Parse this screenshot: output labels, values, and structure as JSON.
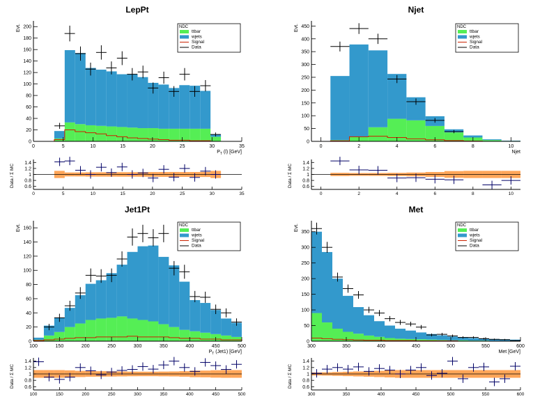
{
  "colors": {
    "ttbar": "#55ee55",
    "wjets": "#3399cc",
    "signal": "#cc2200",
    "data": "#000000",
    "ratio_band": "#ff7700",
    "ratio_points": "#000066"
  },
  "legend": {
    "header": "NDC",
    "entries": [
      "ttbar",
      "wjets",
      "Signal",
      "Data"
    ]
  },
  "ratio_ylabel": "Data / Σ MC",
  "ratio_ticks": [
    "1.4",
    "1.2",
    "1",
    "0.8",
    "0.6"
  ],
  "chart_data": [
    {
      "id": "leppt",
      "type": "bar",
      "stacked": true,
      "title": "LepPt",
      "ylabel": "Evt.",
      "xlabel_main": "P",
      "xlabel_sub": "T",
      "xlabel_rest": "(l) [GeV]",
      "xlim": [
        0,
        35
      ],
      "ylim": [
        0,
        210
      ],
      "xticks": [
        0,
        5,
        10,
        15,
        20,
        25,
        30,
        35
      ],
      "yticks": [
        0,
        20,
        40,
        60,
        80,
        100,
        120,
        140,
        160,
        180,
        200
      ],
      "bins": [
        [
          3.5,
          5.25
        ],
        [
          5.25,
          7
        ],
        [
          7,
          8.75
        ],
        [
          8.75,
          10.5
        ],
        [
          10.5,
          12.25
        ],
        [
          12.25,
          14
        ],
        [
          14,
          15.75
        ],
        [
          15.75,
          17.5
        ],
        [
          17.5,
          19.25
        ],
        [
          19.25,
          21
        ],
        [
          21,
          22.75
        ],
        [
          22.75,
          24.5
        ],
        [
          24.5,
          26.25
        ],
        [
          26.25,
          28
        ],
        [
          28,
          29.75
        ],
        [
          29.75,
          31.5
        ]
      ],
      "ttbar": [
        5,
        33,
        30,
        28,
        27,
        26,
        25,
        24,
        23,
        23,
        22,
        22,
        22,
        22,
        22,
        8
      ],
      "wjets": [
        13,
        126,
        124,
        100,
        98,
        96,
        92,
        93,
        89,
        79,
        77,
        71,
        76,
        75,
        66,
        4
      ],
      "signal": [
        3,
        20,
        17,
        15,
        13,
        10,
        8,
        6,
        5,
        4,
        3,
        2,
        2,
        1,
        1,
        0
      ],
      "data_x": [
        4.4,
        6.1,
        7.9,
        9.6,
        11.4,
        13.1,
        14.9,
        16.6,
        18.4,
        20.1,
        21.9,
        23.6,
        25.4,
        27.1,
        28.9,
        30.6
      ],
      "data_y": [
        27,
        188,
        153,
        126,
        155,
        128,
        145,
        117,
        121,
        93,
        111,
        87,
        117,
        87,
        97,
        12
      ],
      "ratio_y": [
        1.42,
        1.45,
        1.14,
        1.0,
        1.24,
        1.06,
        1.25,
        1.0,
        1.05,
        0.88,
        1.17,
        0.91,
        1.2,
        0.9,
        1.11,
        1.0
      ]
    },
    {
      "id": "njet",
      "type": "bar",
      "stacked": true,
      "title": "Njet",
      "ylabel": "Evt.",
      "xlabel_main": "Njet",
      "xlabel_sub": "",
      "xlabel_rest": "",
      "xlim": [
        -0.5,
        10.5
      ],
      "ylim": [
        0,
        470
      ],
      "xticks": [
        0,
        2,
        4,
        6,
        8,
        10
      ],
      "yticks": [
        0,
        50,
        100,
        150,
        200,
        250,
        300,
        350,
        400,
        450
      ],
      "bins": [
        [
          0.5,
          1.5
        ],
        [
          1.5,
          2.5
        ],
        [
          2.5,
          3.5
        ],
        [
          3.5,
          4.5
        ],
        [
          4.5,
          5.5
        ],
        [
          5.5,
          6.5
        ],
        [
          6.5,
          7.5
        ],
        [
          7.5,
          8.5
        ],
        [
          8.5,
          9.5
        ],
        [
          9.5,
          10.5
        ]
      ],
      "ttbar": [
        5,
        18,
        55,
        88,
        82,
        60,
        35,
        15,
        5,
        2
      ],
      "wjets": [
        250,
        360,
        300,
        175,
        90,
        38,
        12,
        8,
        3,
        1
      ],
      "signal": [
        2,
        18,
        20,
        15,
        10,
        6,
        3,
        1,
        0,
        0
      ],
      "data_x": [
        1,
        2,
        3,
        4,
        5,
        6,
        7,
        8,
        9,
        10
      ],
      "data_y": [
        370,
        440,
        400,
        243,
        155,
        82,
        38,
        0,
        0,
        0
      ],
      "ratio_y": [
        1.45,
        1.15,
        1.14,
        0.88,
        0.89,
        0.84,
        0.82,
        0,
        0.65,
        0.8
      ]
    },
    {
      "id": "jet1pt",
      "type": "bar",
      "stacked": true,
      "title": "Jet1Pt",
      "ylabel": "Evt.",
      "xlabel_main": "P",
      "xlabel_sub": "T",
      "xlabel_rest": "(Jet1) [GeV]",
      "xlim": [
        100,
        500
      ],
      "ylim": [
        0,
        170
      ],
      "xticks": [
        100,
        150,
        200,
        250,
        300,
        350,
        400,
        450,
        500
      ],
      "yticks": [
        0,
        20,
        40,
        60,
        80,
        100,
        120,
        140,
        160
      ],
      "bins": [
        [
          100,
          120
        ],
        [
          120,
          140
        ],
        [
          140,
          160
        ],
        [
          160,
          180
        ],
        [
          180,
          200
        ],
        [
          200,
          220
        ],
        [
          220,
          240
        ],
        [
          240,
          260
        ],
        [
          260,
          280
        ],
        [
          280,
          300
        ],
        [
          300,
          320
        ],
        [
          320,
          340
        ],
        [
          340,
          360
        ],
        [
          360,
          380
        ],
        [
          380,
          400
        ],
        [
          400,
          420
        ],
        [
          420,
          440
        ],
        [
          440,
          460
        ],
        [
          460,
          480
        ],
        [
          480,
          500
        ]
      ],
      "ttbar": [
        2,
        8,
        13,
        20,
        25,
        30,
        32,
        33,
        35,
        32,
        30,
        28,
        24,
        20,
        16,
        14,
        12,
        10,
        8,
        6
      ],
      "wjets": [
        3,
        14,
        20,
        27,
        40,
        51,
        54,
        63,
        73,
        94,
        104,
        107,
        95,
        87,
        68,
        44,
        42,
        34,
        24,
        20
      ],
      "signal": [
        1,
        2,
        3,
        4,
        5,
        5,
        6,
        6,
        6,
        7,
        6,
        6,
        6,
        5,
        4,
        4,
        3,
        3,
        2,
        2
      ],
      "data_x": [
        110,
        130,
        150,
        170,
        190,
        210,
        230,
        250,
        270,
        290,
        310,
        330,
        350,
        370,
        390,
        410,
        430,
        450,
        470,
        490
      ],
      "data_y": [
        0,
        20,
        33,
        50,
        68,
        93,
        92,
        93,
        116,
        147,
        152,
        146,
        152,
        103,
        98,
        63,
        62,
        45,
        40,
        27
      ],
      "ratio_y": [
        1.38,
        0.9,
        0.83,
        0.9,
        1.2,
        1.1,
        0.97,
        1.06,
        1.11,
        1.14,
        1.23,
        1.15,
        1.28,
        1.4,
        1.2,
        1.08,
        1.36,
        1.26,
        1.14,
        1.3
      ]
    },
    {
      "id": "met",
      "type": "bar",
      "stacked": true,
      "title": "Met",
      "ylabel": "Evt.",
      "xlabel_main": "Met [GeV]",
      "xlabel_sub": "",
      "xlabel_rest": "",
      "xlim": [
        300,
        600
      ],
      "ylim": [
        0,
        385
      ],
      "xticks": [
        300,
        350,
        400,
        450,
        500,
        550,
        600
      ],
      "yticks": [
        0,
        50,
        100,
        150,
        200,
        250,
        300,
        350
      ],
      "bins": [
        [
          300,
          315
        ],
        [
          315,
          330
        ],
        [
          330,
          345
        ],
        [
          345,
          360
        ],
        [
          360,
          375
        ],
        [
          375,
          390
        ],
        [
          390,
          405
        ],
        [
          405,
          420
        ],
        [
          420,
          435
        ],
        [
          435,
          450
        ],
        [
          450,
          465
        ],
        [
          465,
          480
        ],
        [
          480,
          495
        ],
        [
          495,
          510
        ],
        [
          510,
          525
        ],
        [
          525,
          540
        ],
        [
          540,
          555
        ],
        [
          555,
          570
        ],
        [
          570,
          585
        ],
        [
          585,
          600
        ]
      ],
      "ttbar": [
        90,
        60,
        40,
        30,
        24,
        18,
        14,
        10,
        8,
        7,
        6,
        5,
        4,
        3,
        3,
        2,
        2,
        1,
        1,
        1
      ],
      "wjets": [
        260,
        225,
        160,
        115,
        85,
        65,
        50,
        40,
        32,
        27,
        22,
        18,
        15,
        12,
        10,
        8,
        7,
        6,
        5,
        4
      ],
      "signal": [
        10,
        8,
        6,
        5,
        4,
        3,
        3,
        2,
        2,
        2,
        1,
        1,
        1,
        1,
        0,
        0,
        0,
        0,
        0,
        0
      ],
      "data_x": [
        307.5,
        322.5,
        337.5,
        352.5,
        367.5,
        382.5,
        397.5,
        412.5,
        427.5,
        442.5,
        457.5,
        472.5,
        487.5,
        502.5,
        517.5,
        532.5,
        547.5,
        562.5,
        577.5,
        592.5
      ],
      "data_y": [
        360,
        300,
        205,
        168,
        148,
        100,
        90,
        72,
        60,
        55,
        45,
        20,
        22,
        17,
        12,
        12,
        8,
        6,
        5,
        2
      ],
      "ratio_y": [
        1.02,
        1.15,
        1.2,
        1.15,
        1.22,
        1.08,
        1.17,
        1.12,
        1.0,
        1.12,
        1.2,
        0.95,
        1.02,
        1.4,
        0.85,
        1.2,
        1.22,
        0.75,
        0.85,
        1.24
      ]
    }
  ]
}
